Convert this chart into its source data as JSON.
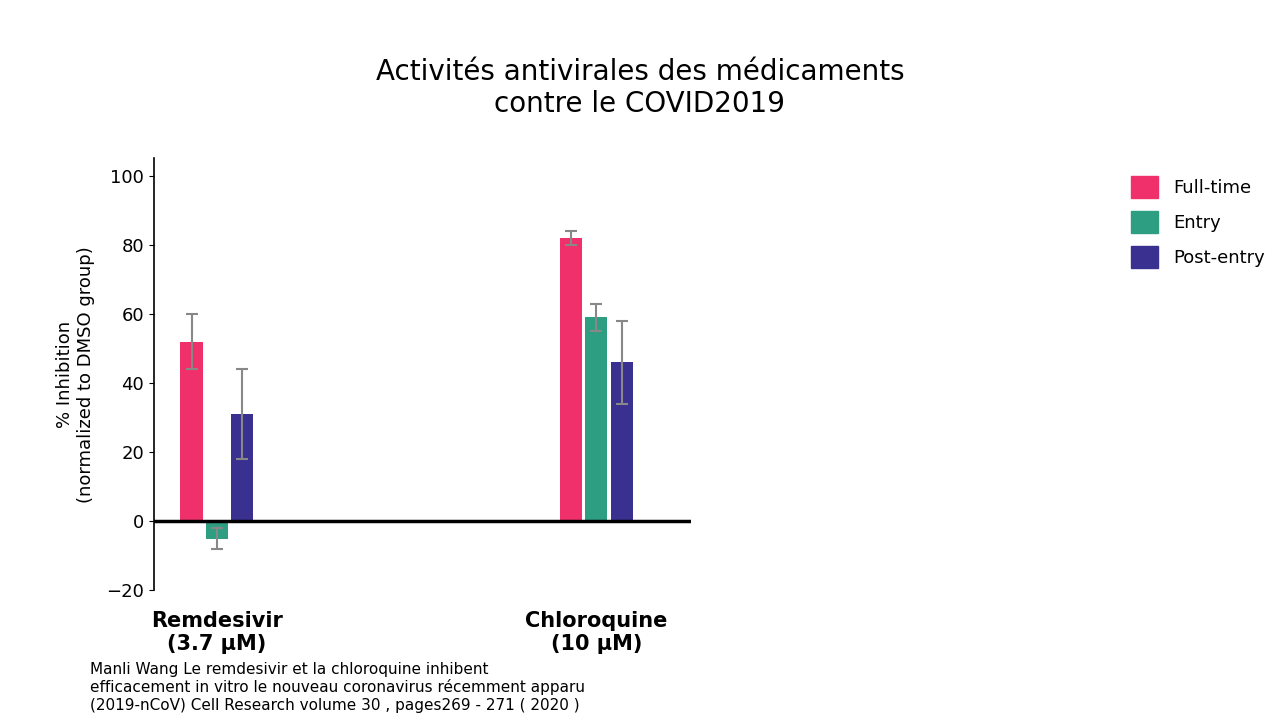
{
  "title": "Activités antivirales des médicaments\ncontre le COVID2019",
  "ylabel": "% Inhibition\n(normalized to DMSO group)",
  "ylim": [
    -20,
    105
  ],
  "yticks": [
    -20,
    0,
    20,
    40,
    60,
    80,
    100
  ],
  "groups": [
    "Remdesivir\n(3.7 μM)",
    "Chloroquine\n(10 μM)"
  ],
  "series": [
    "Full-time",
    "Entry",
    "Post-entry"
  ],
  "colors": [
    "#F0306A",
    "#2E9E82",
    "#3A3090"
  ],
  "bar_width": 0.07,
  "group_centers": [
    1.0,
    2.2
  ],
  "values": {
    "Remdesivir": [
      52,
      -5,
      31
    ],
    "Chloroquine": [
      82,
      59,
      46
    ]
  },
  "errors": {
    "Remdesivir": [
      8,
      3,
      13
    ],
    "Chloroquine": [
      2,
      4,
      12
    ]
  },
  "background_color": "#FFFFFF",
  "title_fontsize": 20,
  "ylabel_fontsize": 13,
  "tick_fontsize": 13,
  "legend_fontsize": 13,
  "group_label_fontsize": 15,
  "caption": "Manli Wang Le remdesivir et la chloroquine inhibent\nefficacement in vitro le nouveau coronavirus récemment apparu\n(2019-nCoV) Cell Research volume 30 , pages269 - 271 ( 2020 )",
  "caption_fontsize": 11,
  "fig_width": 12.8,
  "fig_height": 7.2
}
